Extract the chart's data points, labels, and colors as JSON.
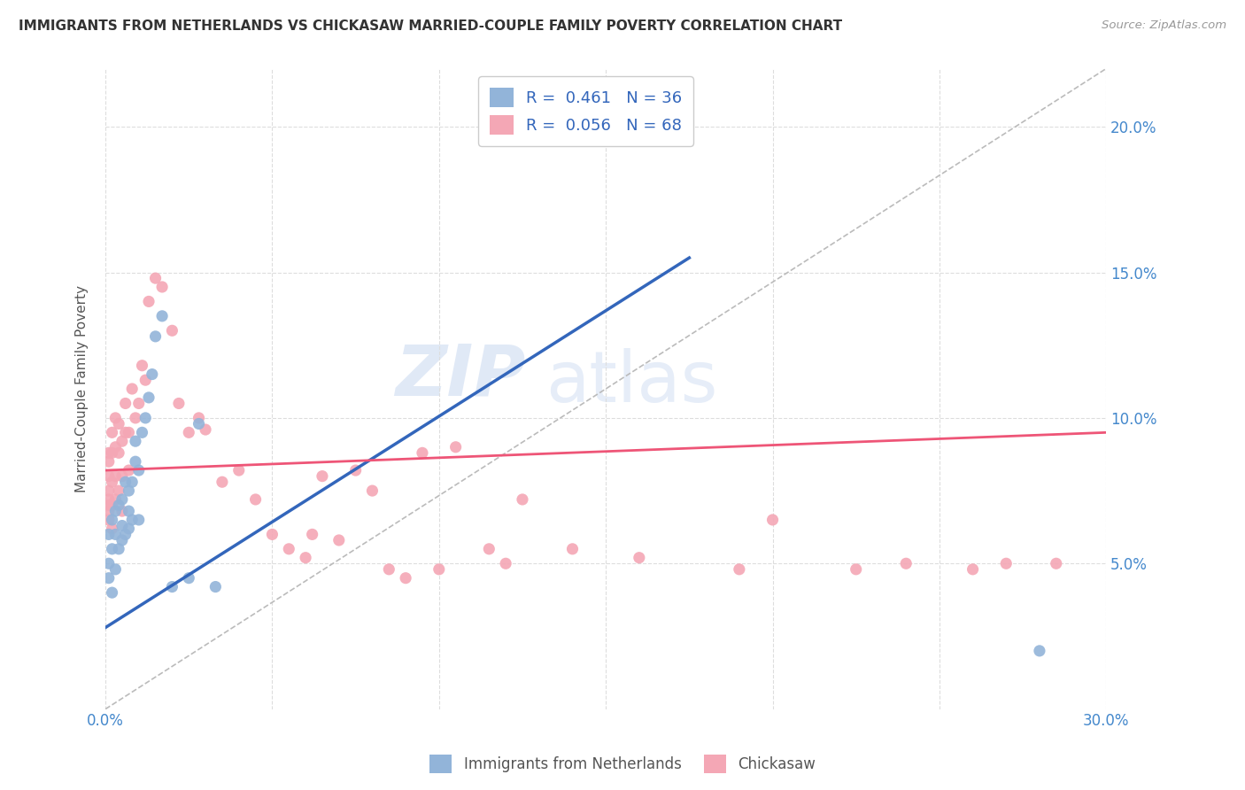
{
  "title": "IMMIGRANTS FROM NETHERLANDS VS CHICKASAW MARRIED-COUPLE FAMILY POVERTY CORRELATION CHART",
  "source": "Source: ZipAtlas.com",
  "ylabel": "Married-Couple Family Poverty",
  "xmin": 0.0,
  "xmax": 0.3,
  "ymin": 0.0,
  "ymax": 0.22,
  "yticks": [
    0.05,
    0.1,
    0.15,
    0.2
  ],
  "ytick_labels": [
    "5.0%",
    "10.0%",
    "15.0%",
    "20.0%"
  ],
  "xticks": [
    0.0,
    0.05,
    0.1,
    0.15,
    0.2,
    0.25,
    0.3
  ],
  "xtick_labels": [
    "0.0%",
    "",
    "",
    "",
    "",
    "",
    "30.0%"
  ],
  "blue_color": "#92B4D9",
  "pink_color": "#F4A7B5",
  "blue_line_color": "#3366BB",
  "pink_line_color": "#EE5577",
  "diagonal_color": "#BBBBBB",
  "R_blue": 0.461,
  "N_blue": 36,
  "R_pink": 0.056,
  "N_pink": 68,
  "legend_label_blue": "Immigrants from Netherlands",
  "legend_label_pink": "Chickasaw",
  "watermark_zip": "ZIP",
  "watermark_atlas": "atlas",
  "blue_line_x0": 0.0,
  "blue_line_y0": 0.028,
  "blue_line_x1": 0.175,
  "blue_line_y1": 0.155,
  "pink_line_x0": 0.0,
  "pink_line_y0": 0.082,
  "pink_line_x1": 0.3,
  "pink_line_y1": 0.095,
  "blue_scatter_x": [
    0.001,
    0.001,
    0.001,
    0.002,
    0.002,
    0.002,
    0.003,
    0.003,
    0.003,
    0.004,
    0.004,
    0.005,
    0.005,
    0.005,
    0.006,
    0.006,
    0.007,
    0.007,
    0.007,
    0.008,
    0.008,
    0.009,
    0.009,
    0.01,
    0.01,
    0.011,
    0.012,
    0.013,
    0.014,
    0.015,
    0.017,
    0.02,
    0.025,
    0.028,
    0.033,
    0.28
  ],
  "blue_scatter_y": [
    0.045,
    0.05,
    0.06,
    0.04,
    0.055,
    0.065,
    0.048,
    0.06,
    0.068,
    0.055,
    0.07,
    0.058,
    0.063,
    0.072,
    0.06,
    0.078,
    0.062,
    0.068,
    0.075,
    0.065,
    0.078,
    0.085,
    0.092,
    0.065,
    0.082,
    0.095,
    0.1,
    0.107,
    0.115,
    0.128,
    0.135,
    0.042,
    0.045,
    0.098,
    0.042,
    0.02
  ],
  "pink_scatter_x": [
    0.001,
    0.001,
    0.001,
    0.001,
    0.001,
    0.001,
    0.001,
    0.001,
    0.002,
    0.002,
    0.002,
    0.002,
    0.002,
    0.003,
    0.003,
    0.003,
    0.003,
    0.004,
    0.004,
    0.004,
    0.005,
    0.005,
    0.005,
    0.006,
    0.006,
    0.007,
    0.007,
    0.008,
    0.009,
    0.01,
    0.011,
    0.012,
    0.013,
    0.015,
    0.017,
    0.02,
    0.022,
    0.025,
    0.028,
    0.03,
    0.035,
    0.04,
    0.045,
    0.05,
    0.055,
    0.06,
    0.062,
    0.065,
    0.07,
    0.075,
    0.08,
    0.085,
    0.09,
    0.095,
    0.1,
    0.105,
    0.115,
    0.12,
    0.125,
    0.14,
    0.16,
    0.19,
    0.2,
    0.225,
    0.24,
    0.26,
    0.27,
    0.285
  ],
  "pink_scatter_y": [
    0.065,
    0.068,
    0.07,
    0.072,
    0.075,
    0.08,
    0.085,
    0.088,
    0.062,
    0.07,
    0.078,
    0.088,
    0.095,
    0.072,
    0.08,
    0.09,
    0.1,
    0.075,
    0.088,
    0.098,
    0.068,
    0.08,
    0.092,
    0.095,
    0.105,
    0.082,
    0.095,
    0.11,
    0.1,
    0.105,
    0.118,
    0.113,
    0.14,
    0.148,
    0.145,
    0.13,
    0.105,
    0.095,
    0.1,
    0.096,
    0.078,
    0.082,
    0.072,
    0.06,
    0.055,
    0.052,
    0.06,
    0.08,
    0.058,
    0.082,
    0.075,
    0.048,
    0.045,
    0.088,
    0.048,
    0.09,
    0.055,
    0.05,
    0.072,
    0.055,
    0.052,
    0.048,
    0.065,
    0.048,
    0.05,
    0.048,
    0.05,
    0.05
  ]
}
